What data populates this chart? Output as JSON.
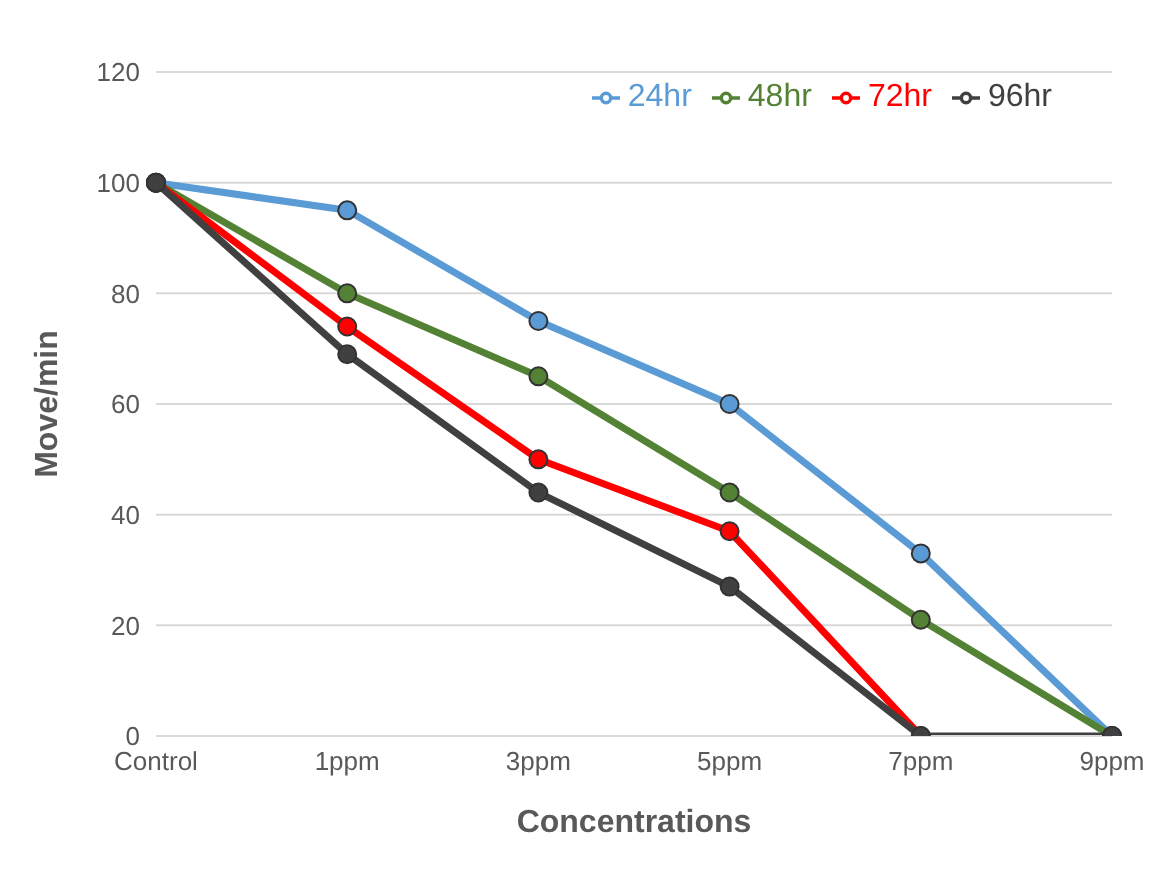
{
  "chart_data": {
    "type": "line",
    "xlabel": "Concentrations",
    "ylabel": "Move/min",
    "categories": [
      "Control",
      "1ppm",
      "3ppm",
      "5ppm",
      "7ppm",
      "9ppm"
    ],
    "series": [
      {
        "name": "24hr",
        "color": "#5b9bd5",
        "values": [
          100,
          95,
          75,
          60,
          33,
          0
        ]
      },
      {
        "name": "48hr",
        "color": "#548235",
        "values": [
          100,
          80,
          65,
          44,
          21,
          0
        ]
      },
      {
        "name": "72hr",
        "color": "#ff0000",
        "values": [
          100,
          74,
          50,
          37,
          0,
          null
        ]
      },
      {
        "name": "96hr",
        "color": "#404040",
        "values": [
          100,
          69,
          44,
          27,
          0,
          0
        ]
      }
    ],
    "ylim": [
      0,
      120
    ],
    "yticks": [
      0,
      20,
      40,
      60,
      80,
      100,
      120
    ],
    "grid": "y",
    "legend": "top right",
    "marker": "circle",
    "line_style": "solid"
  }
}
